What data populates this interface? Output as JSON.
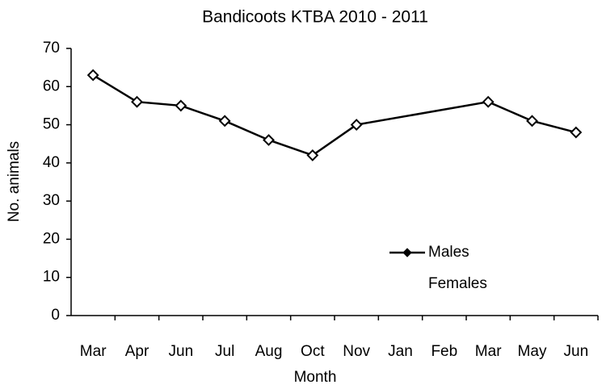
{
  "chart_data": {
    "type": "line",
    "title": "Bandicoots KTBA 2010 - 2011",
    "x_label": "Month",
    "y_label": "No. animals",
    "categories": [
      "Mar",
      "Apr",
      "Jun",
      "Jul",
      "Aug",
      "Oct",
      "Nov",
      "Jan",
      "Feb",
      "Mar",
      "May",
      "Jun"
    ],
    "series": [
      {
        "name": "Males",
        "color": "#000000",
        "values": [
          63,
          56,
          55,
          51,
          46,
          42,
          50,
          null,
          null,
          56,
          51,
          48
        ]
      },
      {
        "name": "Females",
        "color": "#000000",
        "values": [
          null,
          null,
          null,
          null,
          null,
          null,
          null,
          null,
          null,
          null,
          null,
          null
        ]
      }
    ],
    "span_gaps": true,
    "ylim": [
      0,
      70
    ],
    "yticks": [
      0,
      10,
      20,
      30,
      40,
      50,
      60,
      70
    ],
    "grid": false
  }
}
